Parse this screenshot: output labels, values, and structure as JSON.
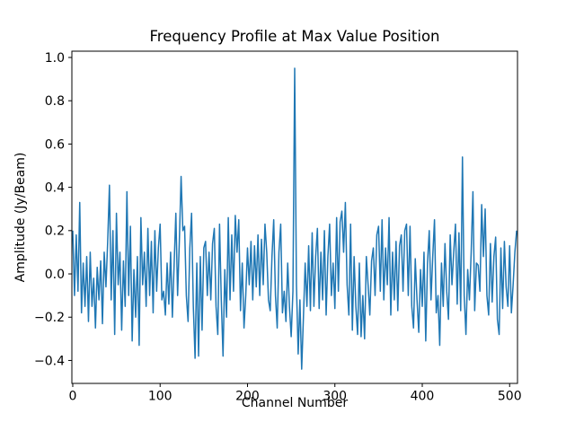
{
  "chart_data": {
    "type": "line",
    "title": "Frequency Profile at Max Value Position",
    "xlabel": "Channel Number",
    "ylabel": "Amplitude (Jy/Beam)",
    "line_color": "#1f77b4",
    "line_width": 1.5,
    "grid": false,
    "legend": null,
    "background_color": "#ffffff",
    "spine_color": "#000000",
    "xlim": [
      -1,
      509
    ],
    "ylim": [
      -0.506,
      1.029
    ],
    "xticks": [
      0,
      100,
      200,
      300,
      400,
      500
    ],
    "xtick_labels": [
      "0",
      "100",
      "200",
      "300",
      "400",
      "500"
    ],
    "yticks": [
      -0.4,
      -0.2,
      0.0,
      0.2,
      0.4,
      0.6,
      0.8,
      1.0
    ],
    "ytick_labels": [
      "−0.4",
      "−0.2",
      "0.0",
      "0.2",
      "0.4",
      "0.6",
      "0.8",
      "1.0"
    ],
    "x_start": 0,
    "x_step": 2,
    "values": [
      0.2,
      -0.1,
      0.18,
      -0.08,
      0.33,
      -0.18,
      0.05,
      -0.15,
      0.08,
      -0.22,
      0.1,
      -0.15,
      -0.02,
      -0.25,
      0.03,
      -0.12,
      0.06,
      -0.23,
      0.1,
      -0.06,
      0.15,
      0.41,
      -0.12,
      0.2,
      -0.28,
      0.28,
      -0.05,
      0.1,
      -0.26,
      0.06,
      -0.15,
      0.38,
      -0.1,
      0.22,
      -0.31,
      0.02,
      -0.2,
      0.08,
      -0.33,
      0.26,
      -0.05,
      0.1,
      -0.15,
      0.21,
      -0.1,
      0.15,
      -0.18,
      0.2,
      -0.08,
      0.12,
      0.23,
      -0.12,
      -0.08,
      -0.19,
      0.05,
      -0.14,
      0.1,
      -0.2,
      0.04,
      0.28,
      -0.1,
      0.15,
      0.45,
      0.2,
      0.22,
      -0.1,
      -0.22,
      0.12,
      0.28,
      -0.15,
      -0.39,
      0.05,
      -0.38,
      0.08,
      -0.26,
      0.12,
      0.15,
      -0.1,
      0.1,
      -0.12,
      0.14,
      0.21,
      -0.15,
      -0.28,
      0.23,
      -0.12,
      -0.38,
      0.02,
      -0.2,
      0.26,
      -0.12,
      0.18,
      -0.08,
      0.27,
      0.1,
      0.25,
      -0.17,
      0.05,
      -0.25,
      -0.1,
      0.12,
      -0.05,
      0.15,
      -0.12,
      0.13,
      -0.06,
      0.18,
      -0.1,
      0.16,
      -0.05,
      0.23,
      0.1,
      -0.12,
      -0.17,
      0.08,
      0.25,
      -0.1,
      -0.25,
      0.1,
      0.23,
      -0.18,
      -0.08,
      -0.22,
      0.05,
      -0.15,
      -0.29,
      -0.08,
      0.95,
      -0.05,
      -0.37,
      -0.12,
      -0.44,
      -0.2,
      0.05,
      -0.15,
      0.13,
      -0.17,
      0.19,
      -0.15,
      0.08,
      0.21,
      -0.16,
      0.1,
      -0.12,
      0.2,
      -0.19,
      0.08,
      0.23,
      -0.1,
      0.05,
      -0.16,
      0.26,
      -0.08,
      0.24,
      0.29,
      0.1,
      0.33,
      -0.05,
      -0.19,
      0.23,
      -0.26,
      0.08,
      -0.15,
      -0.28,
      0.05,
      -0.29,
      -0.1,
      -0.3,
      0.08,
      -0.05,
      -0.19,
      0.06,
      0.12,
      -0.1,
      0.18,
      0.22,
      -0.08,
      0.25,
      -0.12,
      0.12,
      -0.05,
      0.26,
      -0.19,
      0.1,
      -0.12,
      0.15,
      -0.17,
      0.13,
      0.18,
      -0.08,
      0.2,
      0.23,
      -0.1,
      0.22,
      -0.15,
      -0.25,
      0.07,
      -0.12,
      -0.27,
      0.02,
      -0.15,
      0.1,
      -0.31,
      0.05,
      0.2,
      -0.12,
      0.08,
      0.25,
      -0.18,
      -0.1,
      -0.33,
      0.05,
      -0.15,
      0.14,
      -0.08,
      -0.21,
      0.18,
      -0.05,
      0.1,
      0.23,
      -0.14,
      0.19,
      -0.17,
      0.54,
      -0.1,
      -0.28,
      0.02,
      -0.12,
      0.1,
      0.38,
      -0.17,
      0.05,
      0.04,
      -0.08,
      0.32,
      0.08,
      0.3,
      -0.1,
      -0.19,
      0.14,
      -0.13,
      0.08,
      0.17,
      -0.21,
      -0.28,
      0.12,
      -0.16,
      0.15,
      -0.06,
      -0.15,
      0.13,
      -0.18,
      -0.05,
      0.1,
      0.2
    ]
  }
}
